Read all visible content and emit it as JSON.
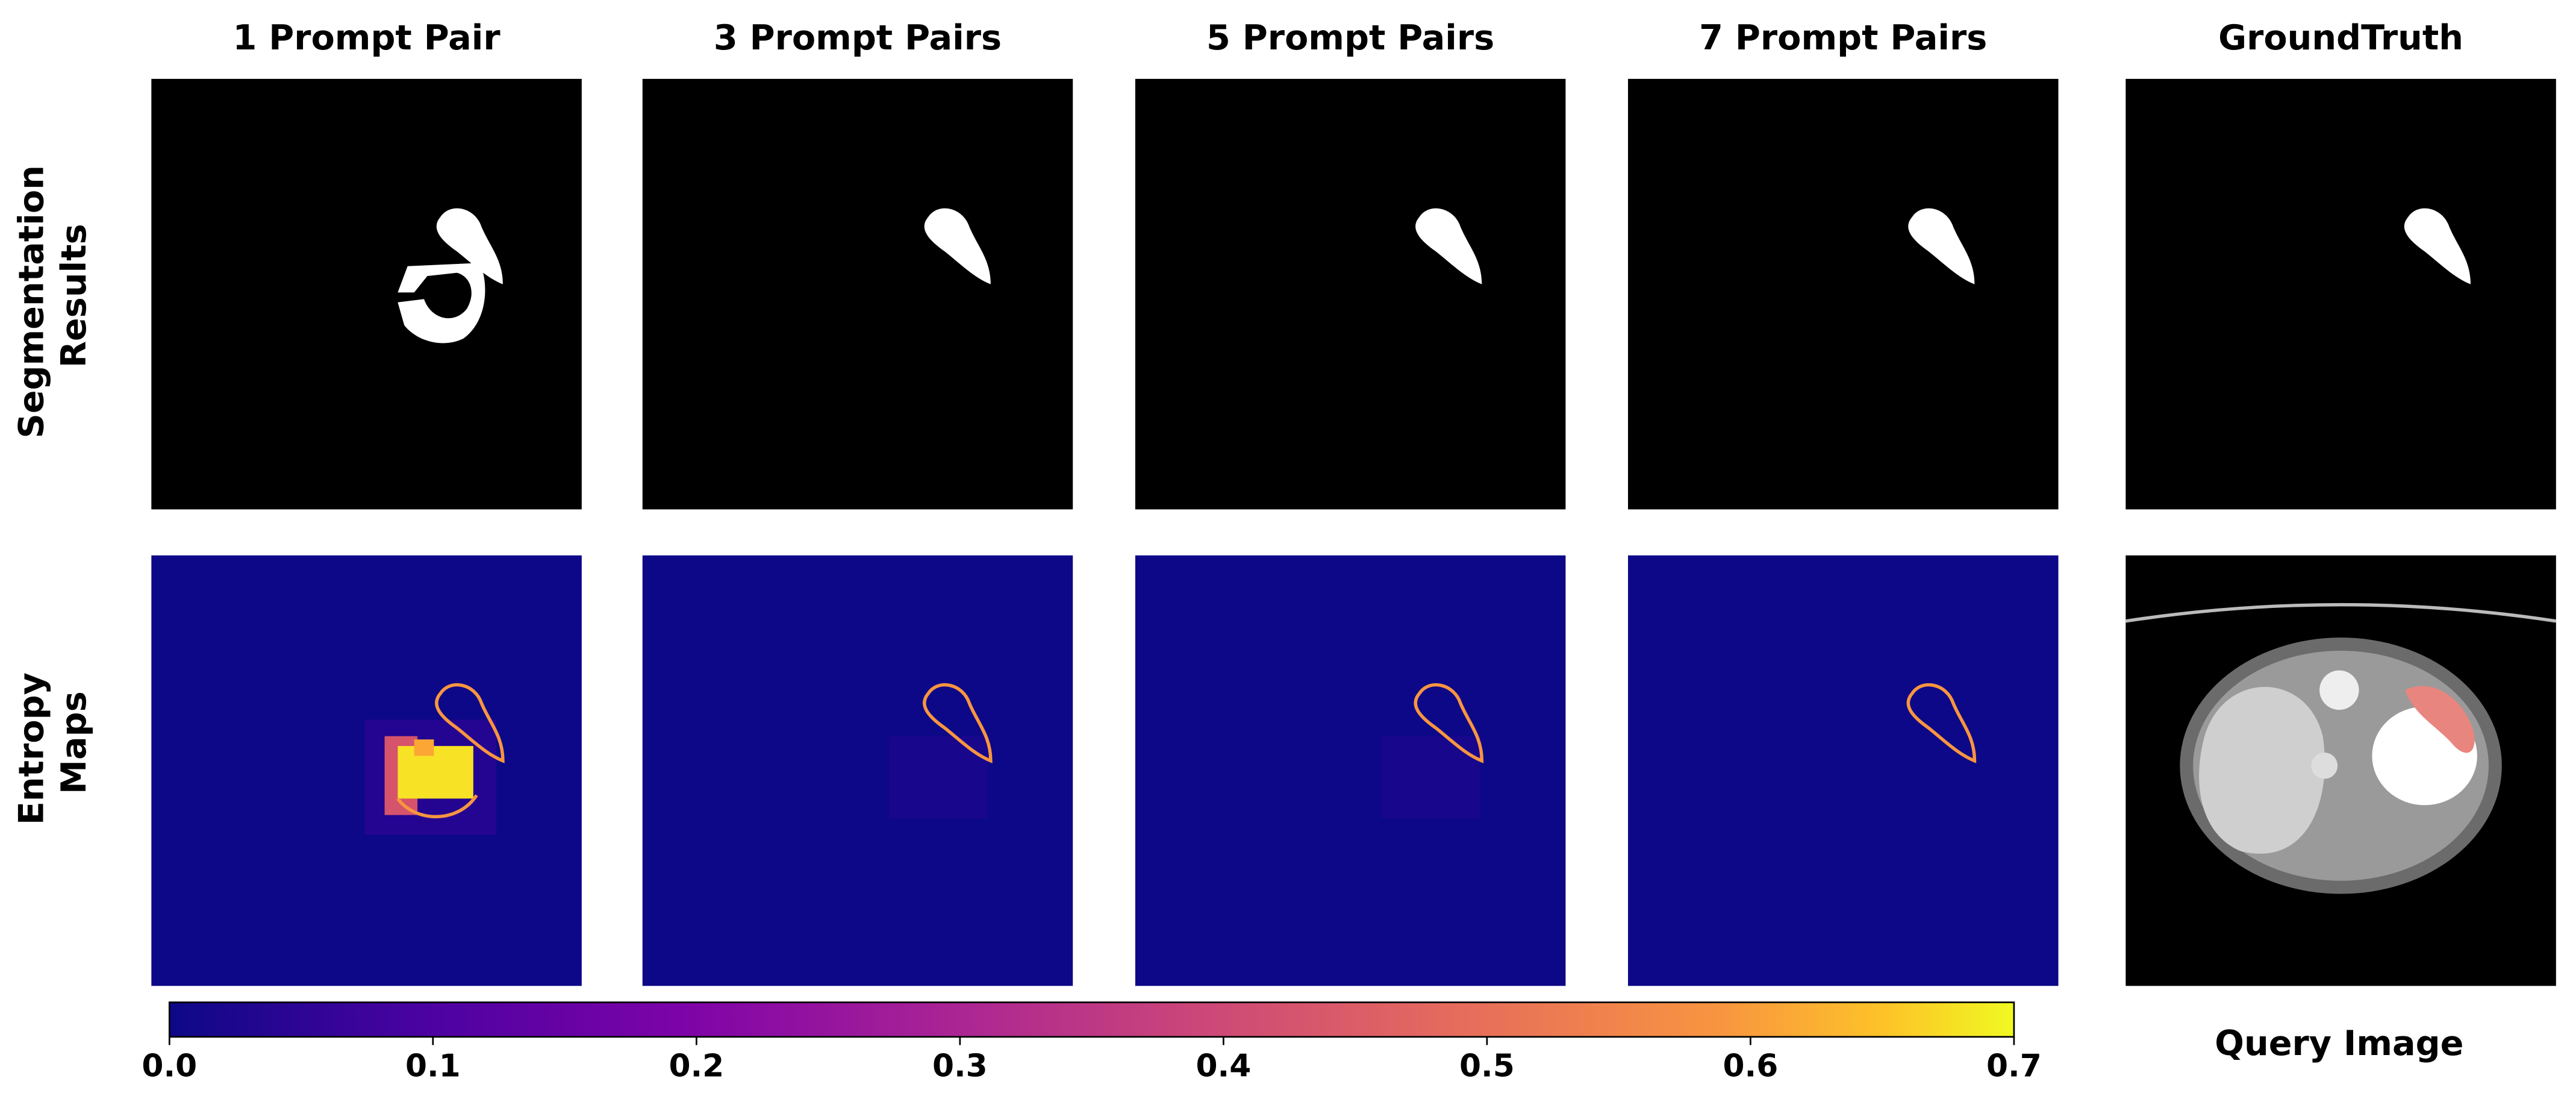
{
  "column_titles": [
    "1 Prompt Pair",
    "3 Prompt Pairs",
    "5 Prompt Pairs",
    "7 Prompt Pairs",
    "GroundTruth"
  ],
  "row_labels": [
    [
      "Segmentation",
      "Results"
    ],
    [
      "Entropy",
      "Maps"
    ]
  ],
  "query_label": "Query Image",
  "colorbar": {
    "colormap": "plasma",
    "range": [
      0,
      0.7
    ],
    "ticks": [
      {
        "value": 0,
        "label": "0.0"
      },
      0.1,
      0.2,
      0.3,
      0.4,
      0.5,
      0.6,
      0.7
    ]
  }
}
